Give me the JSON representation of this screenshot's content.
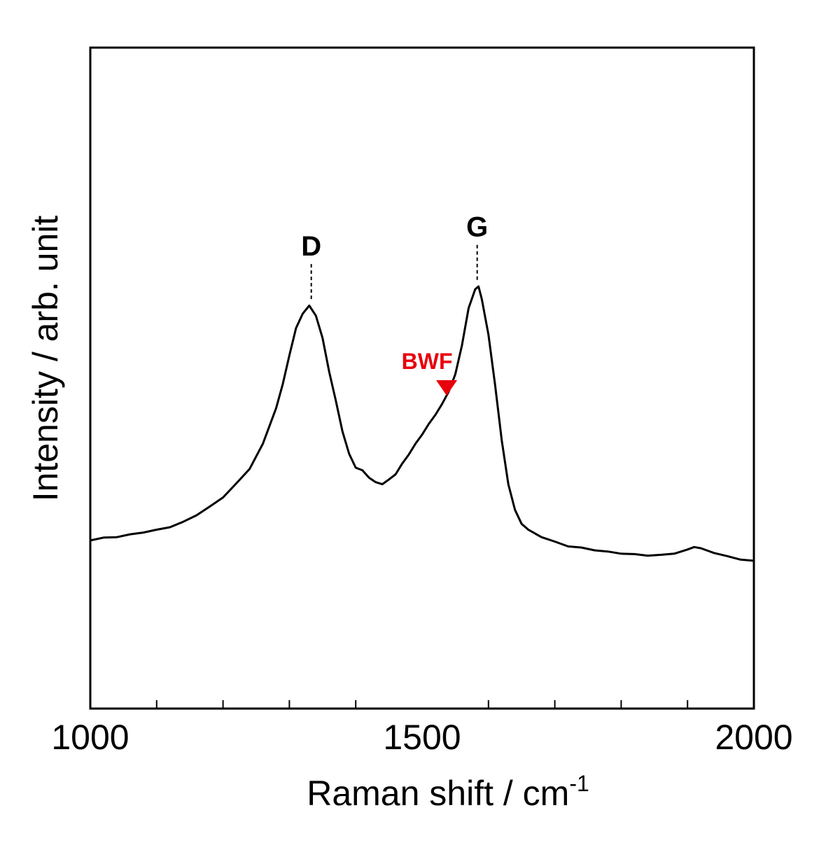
{
  "chart_data": {
    "type": "line",
    "title": "",
    "xlabel": "Raman shift / cm",
    "xlabel_superscript": "-1",
    "ylabel": "Intensity / arb. unit",
    "xlim": [
      1000,
      2000
    ],
    "ylim": [
      0,
      100
    ],
    "x_ticks": [
      1000,
      1500,
      2000
    ],
    "x_minor_ticks": [
      1100,
      1200,
      1300,
      1400,
      1600,
      1700,
      1800,
      1900
    ],
    "y_tick_labels": false,
    "grid": false,
    "legend": "none",
    "series": [
      {
        "color": "#000000",
        "points": [
          [
            1000,
            25.5
          ],
          [
            1020,
            25.8
          ],
          [
            1040,
            26.0
          ],
          [
            1060,
            26.3
          ],
          [
            1080,
            26.7
          ],
          [
            1100,
            27.0
          ],
          [
            1120,
            27.5
          ],
          [
            1140,
            28.2
          ],
          [
            1160,
            29.3
          ],
          [
            1180,
            30.5
          ],
          [
            1200,
            32.0
          ],
          [
            1220,
            34.0
          ],
          [
            1240,
            36.3
          ],
          [
            1260,
            40.0
          ],
          [
            1280,
            45.5
          ],
          [
            1290,
            49.0
          ],
          [
            1300,
            53.5
          ],
          [
            1310,
            57.5
          ],
          [
            1320,
            59.8
          ],
          [
            1330,
            60.9
          ],
          [
            1340,
            59.5
          ],
          [
            1350,
            56.0
          ],
          [
            1360,
            51.0
          ],
          [
            1370,
            46.5
          ],
          [
            1380,
            42.0
          ],
          [
            1390,
            38.5
          ],
          [
            1400,
            36.5
          ],
          [
            1410,
            36.0
          ],
          [
            1420,
            35.0
          ],
          [
            1430,
            34.2
          ],
          [
            1440,
            34.0
          ],
          [
            1450,
            34.6
          ],
          [
            1460,
            35.5
          ],
          [
            1470,
            37.0
          ],
          [
            1480,
            38.5
          ],
          [
            1490,
            40.0
          ],
          [
            1500,
            41.5
          ],
          [
            1510,
            43.0
          ],
          [
            1520,
            44.5
          ],
          [
            1530,
            46.0
          ],
          [
            1540,
            48.0
          ],
          [
            1550,
            50.5
          ],
          [
            1560,
            55.0
          ],
          [
            1570,
            60.5
          ],
          [
            1580,
            63.5
          ],
          [
            1585,
            63.8
          ],
          [
            1590,
            62.0
          ],
          [
            1600,
            56.5
          ],
          [
            1610,
            49.0
          ],
          [
            1620,
            40.5
          ],
          [
            1630,
            34.0
          ],
          [
            1640,
            30.0
          ],
          [
            1650,
            28.0
          ],
          [
            1660,
            27.0
          ],
          [
            1680,
            26.0
          ],
          [
            1700,
            25.2
          ],
          [
            1720,
            24.6
          ],
          [
            1740,
            24.3
          ],
          [
            1760,
            24.0
          ],
          [
            1780,
            23.7
          ],
          [
            1800,
            23.5
          ],
          [
            1820,
            23.3
          ],
          [
            1840,
            23.2
          ],
          [
            1860,
            23.2
          ],
          [
            1880,
            23.5
          ],
          [
            1900,
            24.0
          ],
          [
            1910,
            24.5
          ],
          [
            1920,
            24.2
          ],
          [
            1940,
            23.6
          ],
          [
            1960,
            23.0
          ],
          [
            1980,
            22.6
          ],
          [
            2000,
            22.3
          ]
        ]
      }
    ],
    "annotations": [
      {
        "text": "D",
        "x": 1333,
        "peak_y": 60.9,
        "color": "#000000"
      },
      {
        "text": "G",
        "x": 1583,
        "peak_y": 63.8,
        "color": "#000000"
      },
      {
        "text": "BWF",
        "x": 1537,
        "marker": "down-triangle",
        "color": "#e8000b"
      }
    ]
  }
}
